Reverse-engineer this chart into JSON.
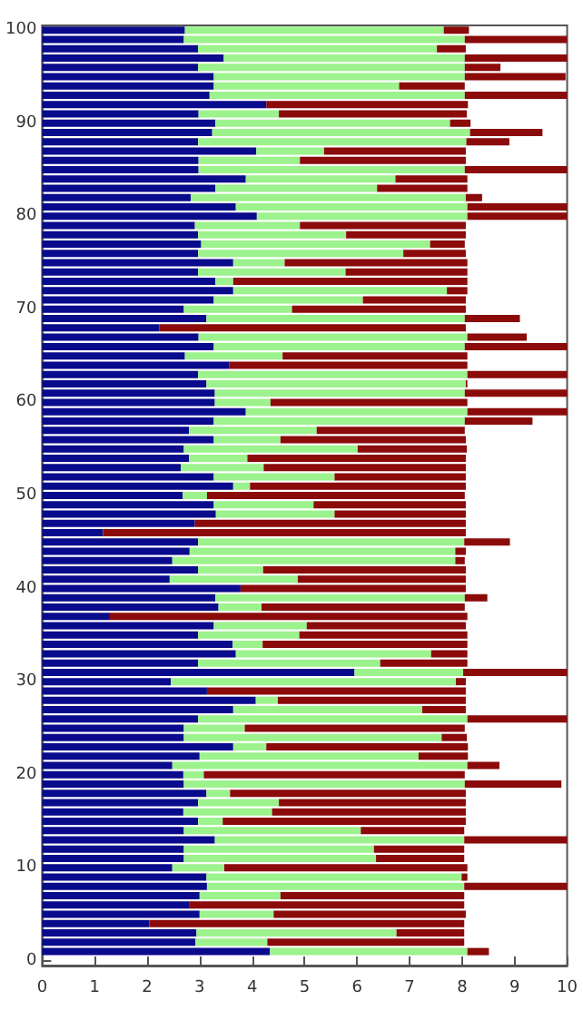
{
  "chart_data": {
    "type": "bar",
    "orientation": "horizontal",
    "stacked": true,
    "categories": [
      "100",
      null,
      null,
      null,
      null,
      null,
      null,
      null,
      null,
      null,
      "90",
      null,
      null,
      null,
      null,
      null,
      null,
      null,
      null,
      null,
      "80",
      null,
      null,
      null,
      null,
      null,
      null,
      null,
      null,
      null,
      "70",
      null,
      null,
      null,
      null,
      null,
      null,
      null,
      null,
      null,
      "60",
      null,
      null,
      null,
      null,
      null,
      null,
      null,
      null,
      null,
      "50",
      null,
      null,
      null,
      null,
      null,
      null,
      null,
      null,
      null,
      "40",
      null,
      null,
      null,
      null,
      null,
      null,
      null,
      null,
      null,
      "30",
      null,
      null,
      null,
      null,
      null,
      null,
      null,
      null,
      null,
      "20",
      null,
      null,
      null,
      null,
      null,
      null,
      null,
      null,
      null,
      "10",
      null,
      null,
      null,
      null,
      null,
      null,
      null,
      null,
      null,
      "0"
    ],
    "series": [
      {
        "color": "#0a0a8c",
        "values": [
          2.72,
          2.7,
          2.97,
          3.46,
          2.97,
          3.27,
          3.27,
          3.19,
          4.27,
          2.98,
          3.3,
          3.24,
          2.97,
          4.08,
          2.98,
          2.98,
          3.88,
          3.3,
          2.83,
          3.69,
          4.09,
          2.91,
          2.97,
          3.03,
          2.97,
          3.64,
          2.97,
          3.3,
          3.64,
          3.27,
          2.7,
          3.13,
          2.23,
          2.98,
          3.27,
          2.72,
          3.56,
          2.97,
          3.13,
          3.29,
          3.29,
          3.88,
          3.27,
          2.8,
          3.27,
          2.7,
          2.8,
          2.64,
          3.27,
          3.64,
          2.68,
          3.27,
          3.31,
          2.91,
          1.16,
          2.97,
          2.81,
          2.48,
          2.97,
          2.43,
          3.78,
          3.3,
          3.36,
          1.29,
          3.27,
          2.97,
          3.63,
          3.69,
          2.97,
          5.95,
          2.45,
          3.14,
          4.07,
          3.64,
          2.97,
          2.7,
          2.7,
          3.64,
          3.0,
          2.48,
          2.69,
          2.7,
          3.13,
          2.97,
          2.69,
          2.97,
          2.7,
          3.29,
          2.7,
          2.7,
          2.48,
          3.13,
          3.14,
          3.0,
          2.81,
          3.0,
          2.04,
          2.94,
          2.92,
          4.34,
          null
        ]
      },
      {
        "color": "#9cf28c",
        "values": [
          4.93,
          5.35,
          4.55,
          4.59,
          5.08,
          4.78,
          3.53,
          4.86,
          0,
          1.53,
          4.47,
          4.91,
          5.11,
          1.29,
          1.93,
          5.07,
          2.85,
          3.08,
          5.24,
          4.41,
          4.01,
          2.0,
          2.82,
          4.36,
          3.91,
          0.98,
          2.81,
          0.34,
          4.07,
          2.84,
          2.06,
          4.92,
          0,
          5.12,
          4.78,
          1.86,
          0,
          5.13,
          4.94,
          4.76,
          1.06,
          4.22,
          4.78,
          2.43,
          1.27,
          3.31,
          1.11,
          1.58,
          2.3,
          0.32,
          0.46,
          1.9,
          2.26,
          0,
          0,
          5.07,
          5.06,
          5.39,
          1.24,
          2.44,
          0,
          4.75,
          0.82,
          0,
          1.77,
          1.93,
          0.57,
          3.72,
          3.47,
          2.07,
          5.43,
          0,
          0.42,
          3.6,
          5.13,
          1.16,
          4.91,
          0.63,
          4.17,
          5.62,
          0.39,
          5.35,
          0.45,
          1.54,
          1.69,
          0.47,
          3.37,
          4.75,
          3.62,
          3.66,
          0.99,
          4.86,
          4.9,
          1.54,
          0,
          1.41,
          0,
          3.81,
          1.37,
          3.76,
          null
        ]
      },
      {
        "color": "#8b0a0a",
        "values": [
          0.48,
          1.95,
          0.55,
          1.95,
          0.68,
          1.92,
          1.25,
          1.95,
          3.84,
          3.58,
          0.39,
          1.38,
          0.82,
          2.7,
          3.16,
          1.95,
          1.37,
          1.72,
          0.31,
          1.9,
          1.9,
          3.16,
          2.28,
          0.66,
          1.19,
          3.48,
          2.32,
          4.46,
          0.39,
          1.96,
          3.31,
          1.05,
          5.84,
          1.13,
          1.95,
          3.52,
          4.54,
          1.9,
          0.03,
          1.95,
          3.75,
          1.9,
          1.29,
          2.82,
          3.53,
          2.08,
          4.16,
          3.85,
          2.5,
          4.11,
          4.91,
          2.9,
          2.5,
          5.16,
          6.91,
          0.87,
          0.2,
          0.18,
          3.86,
          3.2,
          4.29,
          0.43,
          3.87,
          6.81,
          3.03,
          3.2,
          3.9,
          0.69,
          1.66,
          1.98,
          0.19,
          4.93,
          3.58,
          0.83,
          1.9,
          4.19,
          0.48,
          3.84,
          0.94,
          0.61,
          4.97,
          1.84,
          4.49,
          3.56,
          3.69,
          4.63,
          1.97,
          1.96,
          1.72,
          1.68,
          4.63,
          0.11,
          1.96,
          3.5,
          5.23,
          3.66,
          6.0,
          1.29,
          3.75,
          0.41,
          null
        ]
      }
    ],
    "xlim": [
      0,
      10
    ],
    "xticks": [
      0,
      1,
      2,
      3,
      4,
      5,
      6,
      7,
      8,
      9,
      10
    ]
  }
}
